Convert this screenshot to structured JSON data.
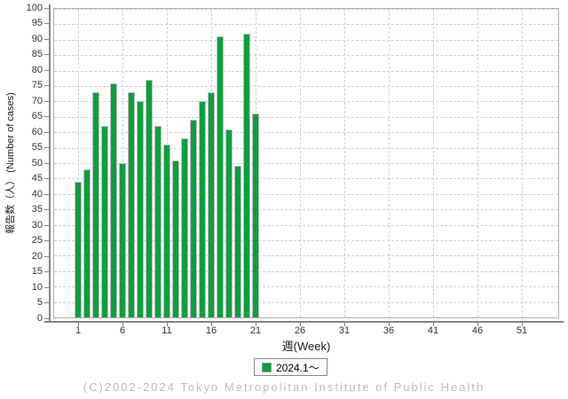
{
  "chart_data": {
    "type": "bar",
    "title": "",
    "xlabel": "週(Week)",
    "ylabel": "報告数（人） (Number of cases)",
    "x_weeks": [
      1,
      2,
      3,
      4,
      5,
      6,
      7,
      8,
      9,
      10,
      11,
      12,
      13,
      14,
      15,
      16,
      17,
      18,
      19,
      20,
      21
    ],
    "series": [
      {
        "name": "2024.1～",
        "values": [
          44,
          48,
          73,
          62,
          76,
          50,
          73,
          70,
          77,
          62,
          56,
          51,
          58,
          64,
          70,
          73,
          91,
          61,
          49,
          92,
          66
        ]
      }
    ],
    "xticks": [
      1,
      6,
      11,
      16,
      21,
      26,
      31,
      36,
      41,
      46,
      51
    ],
    "xlim": [
      0,
      55
    ],
    "ylim": [
      0,
      100
    ],
    "ytick_step": 5,
    "grid": true,
    "legend_position": "bottom-center"
  },
  "legend": {
    "label": "2024.1～"
  },
  "footer": {
    "copyright": "(C)2002-2024 Tokyo Metropolitan Institute of Public Health"
  },
  "colors": {
    "bar_fill": "#0F9D40",
    "bar_outline": "#C0C0C0",
    "gridline": "#D0D0D0",
    "plot_border": "#B0B0B0",
    "axis_line": "#858585",
    "tick_label": "#333333",
    "axis_label": "#1A1A1A",
    "legend_border": "#888888",
    "footer_text": "#BCBCBC",
    "background": "#FFFFFF"
  }
}
